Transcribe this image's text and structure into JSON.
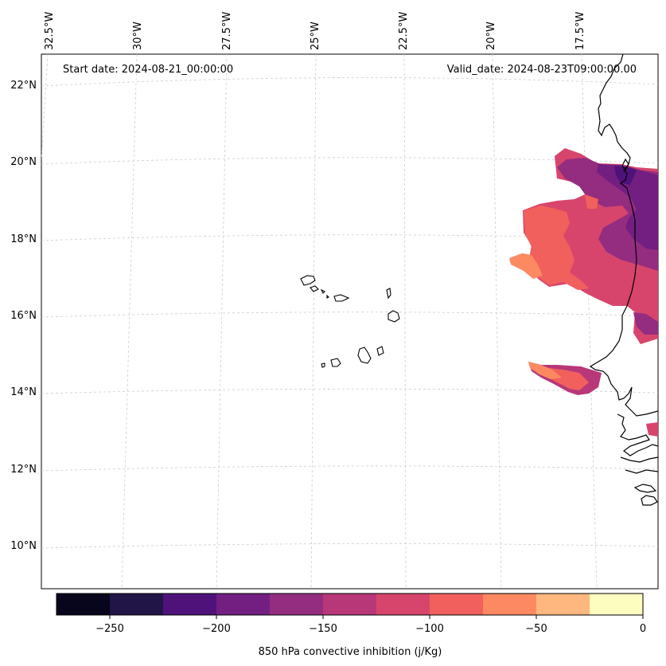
{
  "map": {
    "start_label": "Start date: 2024-08-21_00:00:00",
    "valid_label": "Valid_date: 2024-08-23T09:00:00.00",
    "lon_labels": [
      "32.5°W",
      "30°W",
      "27.5°W",
      "25°W",
      "22.5°W",
      "20°W",
      "17.5°W"
    ],
    "lat_labels": [
      "22°N",
      "20°N",
      "18°N",
      "16°N",
      "14°N",
      "12°N",
      "10°N"
    ]
  },
  "colorbar": {
    "label": "850 hPa convective inhibition (j/Kg)",
    "ticks": [
      "−250",
      "−200",
      "−150",
      "−100",
      "−50",
      "0"
    ],
    "colors": [
      "#07061c",
      "#211447",
      "#4f127b",
      "#721f81",
      "#942c80",
      "#b73779",
      "#d8456c",
      "#f1605d",
      "#fc8961",
      "#feb77e",
      "#fcfdbf"
    ]
  }
}
